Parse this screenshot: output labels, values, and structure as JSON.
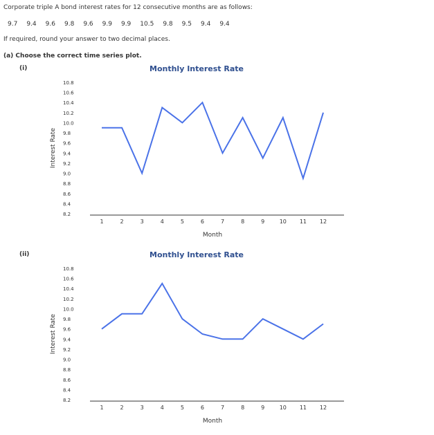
{
  "intro": "Corporate triple A bond interest rates for 12 consecutive months are as follows:",
  "values": [
    "9.7",
    "9.4",
    "9.6",
    "9.8",
    "9.6",
    "9.9",
    "9.9",
    "10.5",
    "9.8",
    "9.5",
    "9.4",
    "9.4"
  ],
  "round_note": "If required, round your answer to two decimal places.",
  "question": "(a) Choose the correct time series plot.",
  "chart_data": [
    {
      "label": "(i)",
      "type": "line",
      "title": "Monthly Interest Rate",
      "xlabel": "Month",
      "ylabel": "Interest Rate",
      "x": [
        1,
        2,
        3,
        4,
        5,
        6,
        7,
        8,
        9,
        10,
        11,
        12
      ],
      "ylim": [
        8.2,
        10.8
      ],
      "yticks": [
        "8.2",
        "8.4",
        "8.6",
        "8.8",
        "9.0",
        "9.2",
        "9.4",
        "9.6",
        "9.8",
        "10.0",
        "10.2",
        "10.4",
        "10.6",
        "10.8"
      ],
      "series": [
        {
          "values": [
            9.9,
            9.9,
            9.0,
            10.3,
            10.0,
            10.4,
            9.4,
            10.1,
            9.3,
            10.1,
            8.9,
            10.2
          ],
          "color": "#4a72e8"
        }
      ]
    },
    {
      "label": "(ii)",
      "type": "line",
      "title": "Monthly Interest Rate",
      "xlabel": "Month",
      "ylabel": "Interest Rate",
      "x": [
        1,
        2,
        3,
        4,
        5,
        6,
        7,
        8,
        9,
        10,
        11,
        12
      ],
      "ylim": [
        8.2,
        10.8
      ],
      "yticks": [
        "8.2",
        "8.4",
        "8.6",
        "8.8",
        "9.0",
        "9.2",
        "9.4",
        "9.6",
        "9.8",
        "10.0",
        "10.2",
        "10.4",
        "10.6",
        "10.8"
      ],
      "series": [
        {
          "values": [
            9.6,
            9.9,
            9.9,
            10.5,
            9.8,
            9.5,
            9.4,
            9.4,
            9.8,
            9.6,
            9.4,
            9.7
          ],
          "color": "#4a72e8"
        }
      ]
    }
  ]
}
